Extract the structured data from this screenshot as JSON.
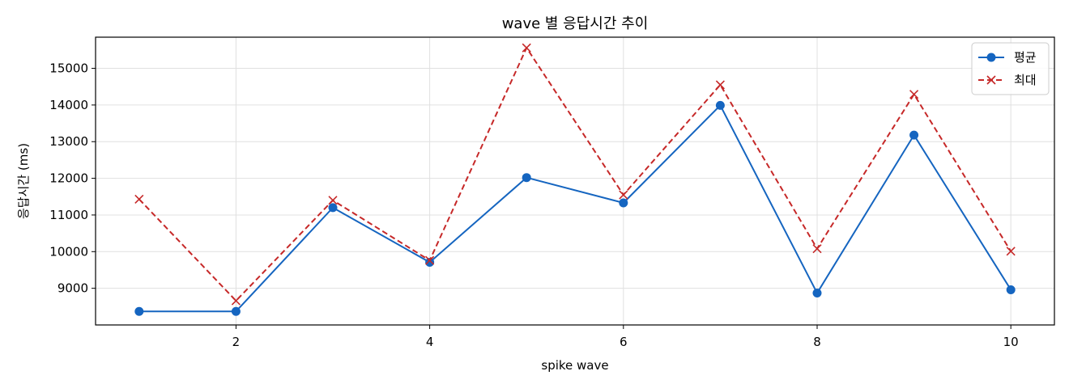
{
  "chart_data": {
    "type": "line",
    "title": "wave 별 응답시간 추이",
    "xlabel": "spike wave",
    "ylabel": "응답시간 (ms)",
    "x": [
      1,
      2,
      3,
      4,
      5,
      6,
      7,
      8,
      9,
      10
    ],
    "xlim": [
      0.55,
      10.45
    ],
    "ylim": [
      8000,
      15850
    ],
    "xticks": [
      2,
      4,
      6,
      8,
      10
    ],
    "yticks": [
      9000,
      10000,
      11000,
      12000,
      13000,
      14000,
      15000
    ],
    "grid": true,
    "legend_position": "top-right",
    "series": [
      {
        "name": "평균",
        "color": "#1565c0",
        "line_style": "solid",
        "marker": "circle",
        "values": [
          8370,
          8370,
          11200,
          9710,
          12020,
          11330,
          13990,
          8870,
          13180,
          8960
        ]
      },
      {
        "name": "최대",
        "color": "#c62828",
        "line_style": "dashed",
        "marker": "x",
        "values": [
          11430,
          8660,
          11400,
          9760,
          15560,
          11550,
          14550,
          10080,
          14290,
          10010
        ]
      }
    ]
  }
}
